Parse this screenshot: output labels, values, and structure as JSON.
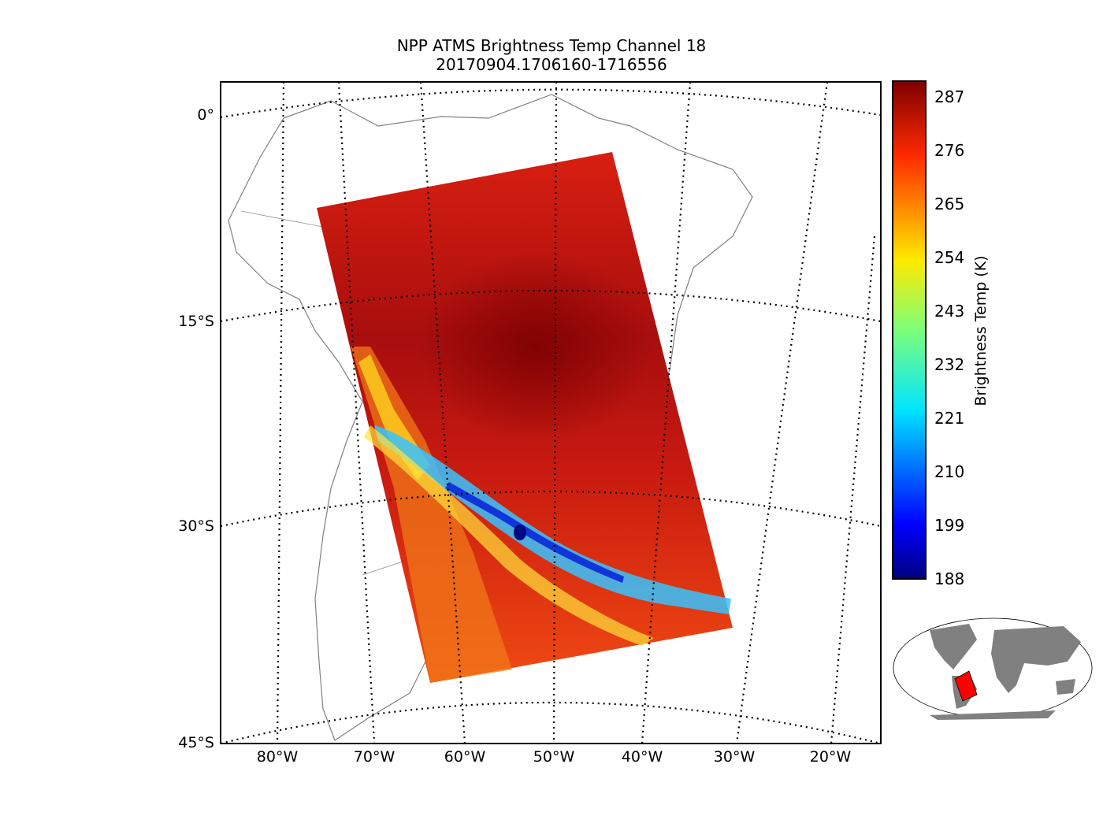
{
  "title": {
    "line1": "NPP ATMS Brightness Temp Channel 18",
    "line2": "20170904.1706160-1716556"
  },
  "map": {
    "lat_labels": [
      "0°",
      "15°S",
      "30°S",
      "45°S"
    ],
    "lon_labels": [
      "80°W",
      "70°W",
      "60°W",
      "50°W",
      "40°W",
      "30°W",
      "20°W"
    ],
    "grid_style": "dotted",
    "coastline_color": "#808080"
  },
  "colorbar": {
    "label": "Brightness Temp (K)",
    "ticks": [
      "287",
      "276",
      "265",
      "254",
      "243",
      "232",
      "221",
      "210",
      "199",
      "188"
    ],
    "min": 188,
    "max": 289,
    "colormap": "jet"
  },
  "inset": {
    "description_icon": "world-overview-map",
    "highlight_color": "#ff0000",
    "land_color": "#808080"
  }
}
